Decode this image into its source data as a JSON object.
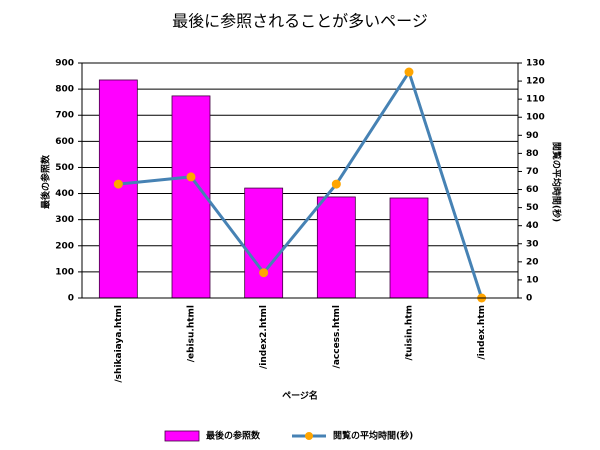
{
  "chart_data": {
    "type": "bar",
    "title": "最後に参照されることが多いページ",
    "x_label": "ページ名",
    "y_label": "最後の参照数",
    "y2_label": "閲覧の平均時間(秒)",
    "categories": [
      "/shikaiaya.html",
      "/ebisu.html",
      "/index2.html",
      "/access.html",
      "/tuisin.htm",
      "/index.htm"
    ],
    "series": [
      {
        "name": "最後の参照数",
        "type": "bar",
        "color": "#ff00ff",
        "values": [
          835,
          774,
          421,
          387,
          383,
          0
        ]
      },
      {
        "name": "閲覧の平均時間(秒)",
        "type": "line",
        "axis": "y2",
        "color": "#4682b4",
        "marker_color": "#ffa500",
        "values": [
          63,
          67,
          14,
          63,
          125,
          0
        ]
      }
    ],
    "ylim": [
      0,
      900
    ],
    "yticks": [
      0,
      100,
      200,
      300,
      400,
      500,
      600,
      700,
      800,
      900
    ],
    "y2lim": [
      0,
      130
    ],
    "y2ticks": [
      0,
      10,
      20,
      30,
      40,
      50,
      60,
      70,
      80,
      90,
      100,
      110,
      120,
      130
    ],
    "grid": true,
    "legend": "bottom"
  }
}
